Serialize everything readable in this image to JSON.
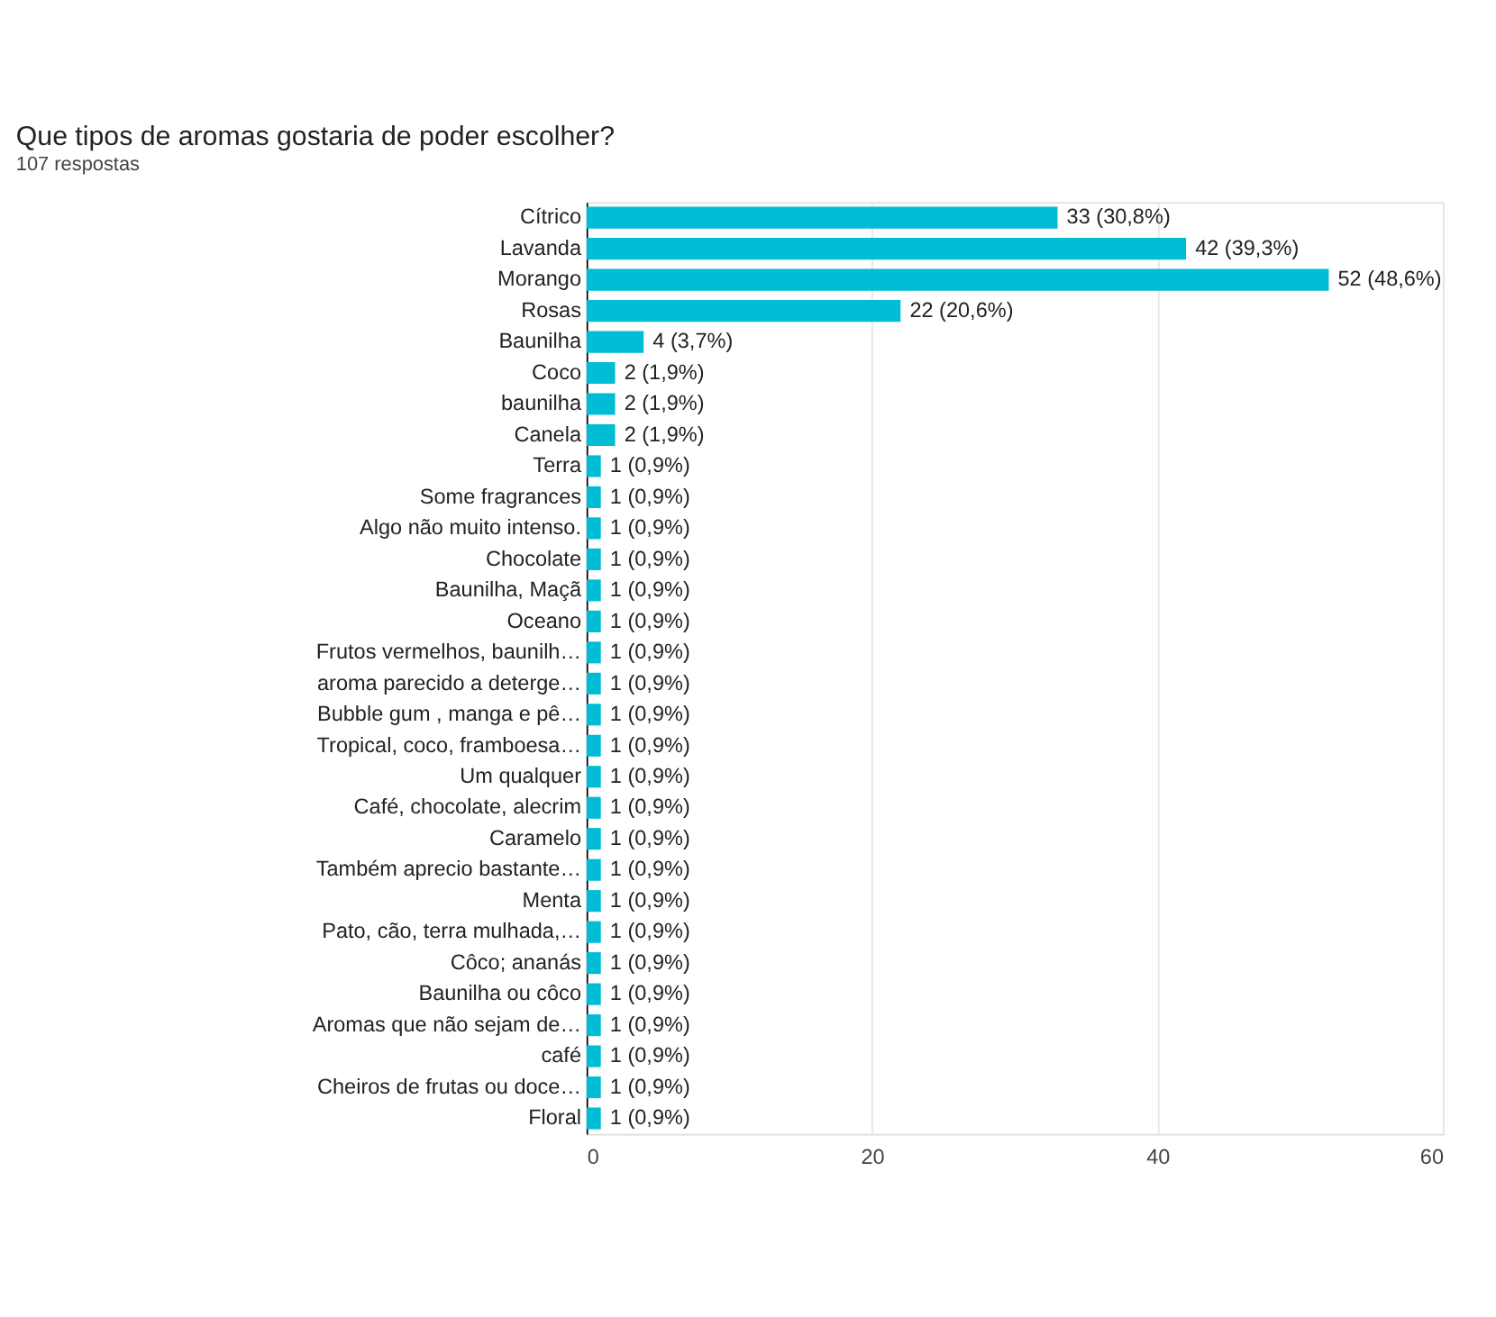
{
  "chart_data": {
    "type": "bar",
    "orientation": "horizontal",
    "title": "Que tipos de aromas gostaria de poder escolher?",
    "subtitle": "107 respostas",
    "categories": [
      "Cítrico",
      "Lavanda",
      "Morango",
      "Rosas",
      "Baunilha",
      "Coco",
      "baunilha",
      "Canela",
      "Terra",
      "Some fragrances",
      "Algo não muito intenso.",
      "Chocolate",
      "Baunilha, Maçã",
      "Oceano",
      "Frutos vermelhos, baunilh…",
      "aroma parecido a deterge…",
      "Bubble gum , manga e pê…",
      "Tropical, coco, framboesa…",
      "Um qualquer",
      "Café, chocolate, alecrim",
      "Caramelo",
      "Também aprecio bastante…",
      "Menta",
      "Pato, cão, terra mulhada,…",
      "Côco; ananás",
      "Baunilha ou côco",
      "Aromas que não sejam de…",
      "café",
      "Cheiros de frutas ou doce…",
      "Floral"
    ],
    "values": [
      33,
      42,
      52,
      22,
      4,
      2,
      2,
      2,
      1,
      1,
      1,
      1,
      1,
      1,
      1,
      1,
      1,
      1,
      1,
      1,
      1,
      1,
      1,
      1,
      1,
      1,
      1,
      1,
      1,
      1
    ],
    "value_labels": [
      "33 (30,8%)",
      "42 (39,3%)",
      "52 (48,6%)",
      "22 (20,6%)",
      "4 (3,7%)",
      "2 (1,9%)",
      "2 (1,9%)",
      "2 (1,9%)",
      "1 (0,9%)",
      "1 (0,9%)",
      "1 (0,9%)",
      "1 (0,9%)",
      "1 (0,9%)",
      "1 (0,9%)",
      "1 (0,9%)",
      "1 (0,9%)",
      "1 (0,9%)",
      "1 (0,9%)",
      "1 (0,9%)",
      "1 (0,9%)",
      "1 (0,9%)",
      "1 (0,9%)",
      "1 (0,9%)",
      "1 (0,9%)",
      "1 (0,9%)",
      "1 (0,9%)",
      "1 (0,9%)",
      "1 (0,9%)",
      "1 (0,9%)",
      "1 (0,9%)"
    ],
    "color": "#00bcd4",
    "xlim": [
      0,
      60
    ],
    "xticks": [
      0,
      20,
      40,
      60
    ],
    "grid": "x"
  }
}
